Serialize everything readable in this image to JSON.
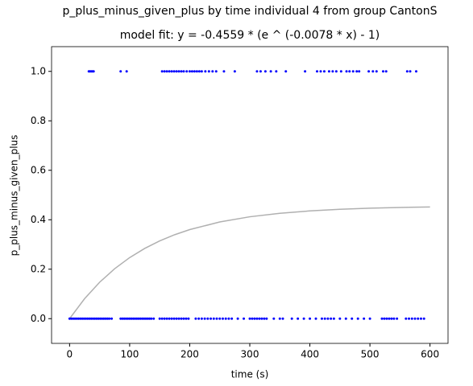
{
  "chart_data": {
    "type": "scatter",
    "title": "p_plus_minus_given_plus by time individual 4 from group CantonS",
    "subtitle": "model fit: y = -0.4559 * (e ^ (-0.0078 * x) - 1)",
    "xlabel": "time (s)",
    "ylabel": "p_plus_minus_given_plus",
    "xlim": [
      -30,
      630
    ],
    "ylim": [
      -0.1,
      1.1
    ],
    "xticks": [
      0,
      100,
      200,
      300,
      400,
      500,
      600
    ],
    "yticks": [
      {
        "value": 0,
        "label": "0.0"
      },
      0.2,
      0.4,
      0.6,
      0.8,
      {
        "value": 1,
        "label": "1.0"
      }
    ],
    "series": [
      {
        "type": "line",
        "color": "#b0b0b0",
        "x": [
          0,
          25,
          50,
          75,
          100,
          125,
          150,
          175,
          200,
          250,
          300,
          350,
          400,
          450,
          500,
          550,
          600
        ],
        "values": [
          0,
          0.0808,
          0.1472,
          0.2019,
          0.2469,
          0.2839,
          0.3144,
          0.3395,
          0.3601,
          0.391,
          0.412,
          0.4262,
          0.4358,
          0.4423,
          0.4467,
          0.4497,
          0.4517
        ]
      },
      {
        "type": "scatter",
        "color": "#0000ff",
        "x": [
          32,
          34,
          36,
          38,
          40,
          85,
          95,
          154,
          158,
          162,
          166,
          170,
          174,
          178,
          182,
          186,
          190,
          195,
          200,
          204,
          208,
          212,
          216,
          220,
          226,
          232,
          238,
          244,
          257,
          275,
          312,
          318,
          326,
          335,
          344,
          360,
          392,
          412,
          418,
          424,
          432,
          438,
          444,
          452,
          461,
          466,
          472,
          478,
          482,
          498,
          505,
          511,
          522,
          527,
          562,
          567,
          577,
          0,
          3,
          6,
          9,
          12,
          15,
          18,
          21,
          24,
          27,
          30,
          33,
          36,
          39,
          42,
          45,
          48,
          51,
          54,
          57,
          60,
          63,
          66,
          70,
          85,
          88,
          91,
          94,
          97,
          100,
          103,
          106,
          109,
          112,
          115,
          118,
          121,
          124,
          127,
          130,
          133,
          136,
          140,
          150,
          154,
          158,
          162,
          166,
          170,
          174,
          178,
          182,
          186,
          190,
          194,
          198,
          210,
          215,
          220,
          225,
          230,
          235,
          240,
          245,
          250,
          255,
          260,
          265,
          270,
          280,
          290,
          300,
          304,
          308,
          312,
          316,
          320,
          324,
          328,
          340,
          350,
          355,
          370,
          380,
          390,
          400,
          410,
          420,
          425,
          430,
          435,
          440,
          450,
          460,
          470,
          480,
          490,
          500,
          520,
          524,
          528,
          532,
          536,
          540,
          545,
          560,
          565,
          570,
          575,
          580,
          585,
          590
        ],
        "values": [
          1,
          1,
          1,
          1,
          1,
          1,
          1,
          1,
          1,
          1,
          1,
          1,
          1,
          1,
          1,
          1,
          1,
          1,
          1,
          1,
          1,
          1,
          1,
          1,
          1,
          1,
          1,
          1,
          1,
          1,
          1,
          1,
          1,
          1,
          1,
          1,
          1,
          1,
          1,
          1,
          1,
          1,
          1,
          1,
          1,
          1,
          1,
          1,
          1,
          1,
          1,
          1,
          1,
          1,
          1,
          1,
          1,
          0,
          0,
          0,
          0,
          0,
          0,
          0,
          0,
          0,
          0,
          0,
          0,
          0,
          0,
          0,
          0,
          0,
          0,
          0,
          0,
          0,
          0,
          0,
          0,
          0,
          0,
          0,
          0,
          0,
          0,
          0,
          0,
          0,
          0,
          0,
          0,
          0,
          0,
          0,
          0,
          0,
          0,
          0,
          0,
          0,
          0,
          0,
          0,
          0,
          0,
          0,
          0,
          0,
          0,
          0,
          0,
          0,
          0,
          0,
          0,
          0,
          0,
          0,
          0,
          0,
          0,
          0,
          0,
          0,
          0,
          0,
          0,
          0,
          0,
          0,
          0,
          0,
          0,
          0,
          0,
          0,
          0,
          0,
          0,
          0,
          0,
          0,
          0,
          0,
          0,
          0,
          0,
          0,
          0,
          0,
          0,
          0,
          0,
          0,
          0,
          0,
          0,
          0,
          0,
          0,
          0,
          0,
          0,
          0,
          0,
          0,
          0
        ]
      }
    ]
  }
}
